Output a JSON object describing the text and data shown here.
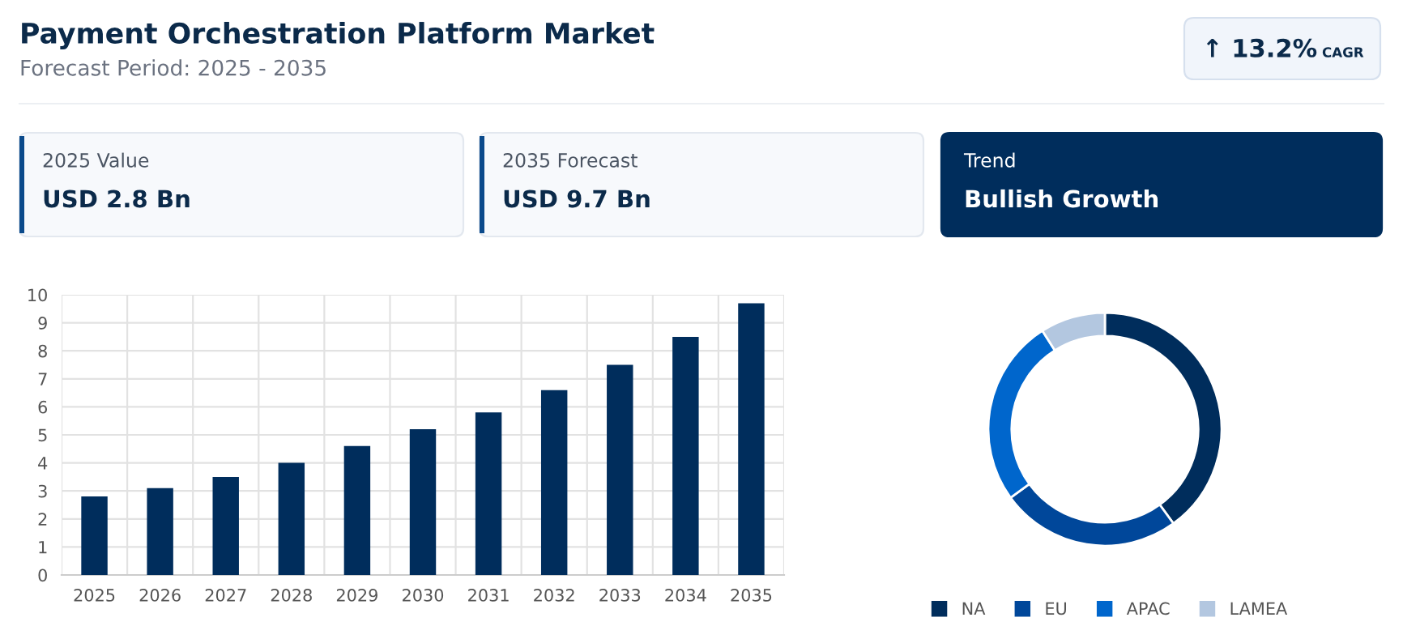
{
  "chart_data": [
    {
      "type": "other",
      "title": "Payment Orchestration Platform Market",
      "subtitle": "Forecast Period: 2025 - 2035",
      "annotations": [
        "↑ 13.2%",
        "CAGR",
        "2025 Value",
        "USD 2.8 Bn",
        "2035 Forecast",
        "USD 9.7 Bn",
        "Trend",
        "Bullish Growth"
      ]
    },
    {
      "type": "bar",
      "categories": [
        "2025",
        "2026",
        "2027",
        "2028",
        "2029",
        "2030",
        "2031",
        "2032",
        "2033",
        "2034",
        "2035"
      ],
      "values": [
        2.8,
        3.1,
        3.5,
        4.0,
        4.6,
        5.2,
        5.8,
        6.6,
        7.5,
        8.5,
        9.7
      ],
      "color": "#002d5c",
      "ylim": [
        0,
        10
      ],
      "yticks": [
        0,
        1,
        2,
        3,
        4,
        5,
        6,
        7,
        8,
        9,
        10
      ],
      "grid": true,
      "legend": false
    },
    {
      "type": "donut",
      "categories": [
        "NA",
        "EU",
        "APAC",
        "LAMEA"
      ],
      "values": [
        40,
        25,
        26,
        9
      ],
      "colors": [
        "#002d5c",
        "#00479a",
        "#0066cc",
        "#b3c7e0"
      ],
      "legend": "bottom"
    }
  ]
}
